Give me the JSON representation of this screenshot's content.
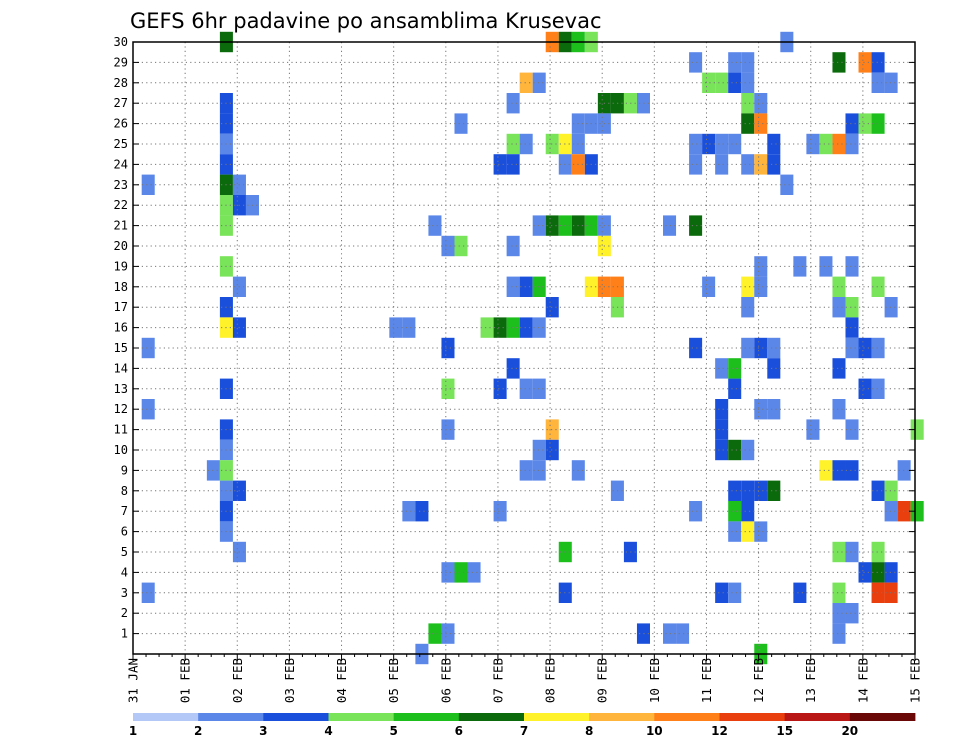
{
  "chart_data": {
    "type": "heatmap",
    "title": "GEFS 6hr padavine po ansamblima Krusevac",
    "xlabel": "",
    "ylabel": "",
    "y_ticks": [
      1,
      2,
      3,
      4,
      5,
      6,
      7,
      8,
      9,
      10,
      11,
      12,
      13,
      14,
      15,
      16,
      17,
      18,
      19,
      20,
      21,
      22,
      23,
      24,
      25,
      26,
      27,
      28,
      29,
      30
    ],
    "x_ticks": [
      "31 JAN",
      "01 FEB",
      "02 FEB",
      "03 FEB",
      "04 FEB",
      "05 FEB",
      "06 FEB",
      "07 FEB",
      "08 FEB",
      "09 FEB",
      "10 FEB",
      "11 FEB",
      "12 FEB",
      "13 FEB",
      "14 FEB",
      "15 FEB"
    ],
    "x_range_hours": [
      0,
      360
    ],
    "y_range_members": [
      0,
      30
    ],
    "step_hours": 6,
    "legend": {
      "labels": [
        "1",
        "2",
        "3",
        "4",
        "5",
        "6",
        "7",
        "8",
        "10",
        "12",
        "15",
        "20"
      ],
      "colors": [
        "#b3c8f7",
        "#5b87e9",
        "#1a4fdc",
        "#79e35a",
        "#1dbf1d",
        "#0b6a0b",
        "#fff12a",
        "#ffb43c",
        "#ff8018",
        "#e93e0e",
        "#b91616",
        "#6a0808"
      ]
    },
    "cells": [
      [
        30,
        40,
        5
      ],
      [
        30,
        190,
        8
      ],
      [
        30,
        196,
        5
      ],
      [
        30,
        202,
        4
      ],
      [
        30,
        208,
        3
      ],
      [
        30,
        298,
        1
      ],
      [
        29,
        256,
        1
      ],
      [
        29,
        274,
        1
      ],
      [
        29,
        280,
        1
      ],
      [
        29,
        322,
        5
      ],
      [
        29,
        334,
        8
      ],
      [
        29,
        340,
        2
      ],
      [
        28,
        178,
        7
      ],
      [
        28,
        184,
        1
      ],
      [
        28,
        262,
        3
      ],
      [
        28,
        268,
        3
      ],
      [
        28,
        274,
        2
      ],
      [
        28,
        280,
        1
      ],
      [
        28,
        340,
        1
      ],
      [
        28,
        346,
        1
      ],
      [
        27,
        40,
        2
      ],
      [
        27,
        172,
        1
      ],
      [
        27,
        214,
        5
      ],
      [
        27,
        220,
        5
      ],
      [
        27,
        226,
        3
      ],
      [
        27,
        232,
        1
      ],
      [
        27,
        280,
        3
      ],
      [
        27,
        286,
        1
      ],
      [
        26,
        40,
        2
      ],
      [
        26,
        148,
        1
      ],
      [
        26,
        202,
        1
      ],
      [
        26,
        208,
        1
      ],
      [
        26,
        214,
        1
      ],
      [
        26,
        280,
        5
      ],
      [
        26,
        286,
        8
      ],
      [
        26,
        328,
        2
      ],
      [
        26,
        334,
        3
      ],
      [
        26,
        340,
        4
      ],
      [
        25,
        40,
        1
      ],
      [
        25,
        172,
        3
      ],
      [
        25,
        178,
        1
      ],
      [
        25,
        190,
        3
      ],
      [
        25,
        196,
        6
      ],
      [
        25,
        202,
        1
      ],
      [
        25,
        256,
        1
      ],
      [
        25,
        262,
        2
      ],
      [
        25,
        268,
        1
      ],
      [
        25,
        274,
        1
      ],
      [
        25,
        292,
        2
      ],
      [
        25,
        310,
        1
      ],
      [
        25,
        316,
        3
      ],
      [
        25,
        322,
        8
      ],
      [
        25,
        328,
        1
      ],
      [
        24,
        40,
        2
      ],
      [
        24,
        166,
        2
      ],
      [
        24,
        172,
        2
      ],
      [
        24,
        196,
        1
      ],
      [
        24,
        202,
        8
      ],
      [
        24,
        208,
        2
      ],
      [
        24,
        256,
        1
      ],
      [
        24,
        268,
        1
      ],
      [
        24,
        280,
        1
      ],
      [
        24,
        286,
        7
      ],
      [
        24,
        292,
        2
      ],
      [
        23,
        4,
        1
      ],
      [
        23,
        40,
        5
      ],
      [
        23,
        46,
        1
      ],
      [
        23,
        298,
        1
      ],
      [
        22,
        40,
        3
      ],
      [
        22,
        46,
        2
      ],
      [
        22,
        52,
        1
      ],
      [
        21,
        40,
        3
      ],
      [
        21,
        136,
        1
      ],
      [
        21,
        184,
        1
      ],
      [
        21,
        190,
        5
      ],
      [
        21,
        196,
        4
      ],
      [
        21,
        202,
        5
      ],
      [
        21,
        208,
        4
      ],
      [
        21,
        214,
        1
      ],
      [
        21,
        244,
        1
      ],
      [
        21,
        256,
        5
      ],
      [
        20,
        142,
        1
      ],
      [
        20,
        148,
        3
      ],
      [
        20,
        172,
        1
      ],
      [
        20,
        214,
        6
      ],
      [
        19,
        40,
        3
      ],
      [
        19,
        286,
        1
      ],
      [
        19,
        304,
        1
      ],
      [
        19,
        316,
        1
      ],
      [
        19,
        328,
        1
      ],
      [
        18,
        46,
        1
      ],
      [
        18,
        172,
        1
      ],
      [
        18,
        178,
        2
      ],
      [
        18,
        184,
        4
      ],
      [
        18,
        208,
        6
      ],
      [
        18,
        214,
        8
      ],
      [
        18,
        220,
        8
      ],
      [
        18,
        262,
        1
      ],
      [
        18,
        280,
        6
      ],
      [
        18,
        286,
        1
      ],
      [
        18,
        322,
        3
      ],
      [
        18,
        340,
        3
      ],
      [
        17,
        40,
        2
      ],
      [
        17,
        190,
        2
      ],
      [
        17,
        220,
        3
      ],
      [
        17,
        280,
        1
      ],
      [
        17,
        322,
        1
      ],
      [
        17,
        328,
        3
      ],
      [
        17,
        346,
        1
      ],
      [
        16,
        40,
        6
      ],
      [
        16,
        46,
        2
      ],
      [
        16,
        118,
        1
      ],
      [
        16,
        124,
        1
      ],
      [
        16,
        160,
        3
      ],
      [
        16,
        166,
        5
      ],
      [
        16,
        172,
        4
      ],
      [
        16,
        178,
        2
      ],
      [
        16,
        184,
        1
      ],
      [
        16,
        328,
        2
      ],
      [
        15,
        4,
        1
      ],
      [
        15,
        142,
        2
      ],
      [
        15,
        256,
        2
      ],
      [
        15,
        280,
        1
      ],
      [
        15,
        286,
        2
      ],
      [
        15,
        292,
        1
      ],
      [
        15,
        328,
        1
      ],
      [
        15,
        334,
        2
      ],
      [
        15,
        340,
        1
      ],
      [
        14,
        172,
        2
      ],
      [
        14,
        268,
        1
      ],
      [
        14,
        274,
        4
      ],
      [
        14,
        292,
        2
      ],
      [
        14,
        322,
        2
      ],
      [
        13,
        40,
        2
      ],
      [
        13,
        142,
        3
      ],
      [
        13,
        166,
        2
      ],
      [
        13,
        178,
        1
      ],
      [
        13,
        184,
        1
      ],
      [
        13,
        274,
        2
      ],
      [
        13,
        334,
        2
      ],
      [
        13,
        340,
        1
      ],
      [
        12,
        4,
        1
      ],
      [
        12,
        268,
        2
      ],
      [
        12,
        286,
        1
      ],
      [
        12,
        292,
        1
      ],
      [
        12,
        322,
        1
      ],
      [
        11,
        40,
        2
      ],
      [
        11,
        142,
        1
      ],
      [
        11,
        190,
        7
      ],
      [
        11,
        268,
        2
      ],
      [
        11,
        310,
        1
      ],
      [
        11,
        328,
        1
      ],
      [
        11,
        358,
        3
      ],
      [
        10,
        40,
        1
      ],
      [
        10,
        184,
        1
      ],
      [
        10,
        190,
        2
      ],
      [
        10,
        268,
        2
      ],
      [
        10,
        274,
        5
      ],
      [
        10,
        280,
        1
      ],
      [
        9,
        34,
        1
      ],
      [
        9,
        40,
        3
      ],
      [
        9,
        178,
        1
      ],
      [
        9,
        184,
        1
      ],
      [
        9,
        202,
        1
      ],
      [
        9,
        316,
        6
      ],
      [
        9,
        322,
        2
      ],
      [
        9,
        328,
        2
      ],
      [
        9,
        352,
        1
      ],
      [
        8,
        40,
        1
      ],
      [
        8,
        46,
        2
      ],
      [
        8,
        220,
        1
      ],
      [
        8,
        274,
        2
      ],
      [
        8,
        280,
        2
      ],
      [
        8,
        286,
        2
      ],
      [
        8,
        292,
        5
      ],
      [
        8,
        340,
        2
      ],
      [
        8,
        346,
        3
      ],
      [
        7,
        40,
        2
      ],
      [
        7,
        124,
        1
      ],
      [
        7,
        130,
        2
      ],
      [
        7,
        166,
        1
      ],
      [
        7,
        256,
        1
      ],
      [
        7,
        274,
        4
      ],
      [
        7,
        280,
        2
      ],
      [
        7,
        346,
        1
      ],
      [
        7,
        352,
        9
      ],
      [
        7,
        358,
        4
      ],
      [
        6,
        40,
        1
      ],
      [
        6,
        274,
        1
      ],
      [
        6,
        280,
        6
      ],
      [
        6,
        286,
        1
      ],
      [
        5,
        46,
        1
      ],
      [
        5,
        196,
        4
      ],
      [
        5,
        226,
        2
      ],
      [
        5,
        322,
        3
      ],
      [
        5,
        328,
        1
      ],
      [
        5,
        340,
        3
      ],
      [
        4,
        142,
        1
      ],
      [
        4,
        148,
        4
      ],
      [
        4,
        154,
        1
      ],
      [
        4,
        334,
        2
      ],
      [
        4,
        340,
        5
      ],
      [
        4,
        346,
        2
      ],
      [
        3,
        4,
        1
      ],
      [
        3,
        196,
        2
      ],
      [
        3,
        268,
        2
      ],
      [
        3,
        274,
        1
      ],
      [
        3,
        304,
        2
      ],
      [
        3,
        322,
        3
      ],
      [
        3,
        340,
        9
      ],
      [
        3,
        346,
        9
      ],
      [
        2,
        322,
        1
      ],
      [
        2,
        328,
        1
      ],
      [
        1,
        136,
        4
      ],
      [
        1,
        142,
        1
      ],
      [
        1,
        232,
        2
      ],
      [
        1,
        244,
        1
      ],
      [
        1,
        250,
        1
      ],
      [
        1,
        322,
        1
      ],
      [
        0,
        130,
        1
      ],
      [
        0,
        286,
        4
      ]
    ]
  }
}
